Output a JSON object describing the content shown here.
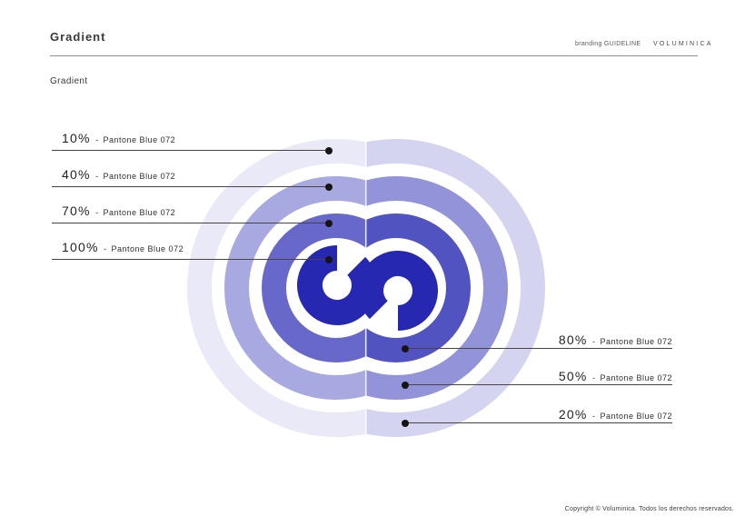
{
  "header": {
    "title": "Gradient",
    "tagline": "branding GUIDELINE",
    "brand": "VOLUMINICA"
  },
  "section": {
    "subtitle": "Gradient"
  },
  "figure": {
    "base_color": "#2628b2",
    "separator": "-",
    "left_callouts": [
      {
        "pct": "10%",
        "name": "Pantone Blue 072",
        "opacity": 0.1
      },
      {
        "pct": "40%",
        "name": "Pantone Blue 072",
        "opacity": 0.4
      },
      {
        "pct": "70%",
        "name": "Pantone Blue 072",
        "opacity": 0.7
      },
      {
        "pct": "100%",
        "name": "Pantone Blue 072",
        "opacity": 1.0
      }
    ],
    "right_callouts": [
      {
        "pct": "80%",
        "name": "Pantone Blue 072",
        "opacity": 0.8
      },
      {
        "pct": "50%",
        "name": "Pantone Blue 072",
        "opacity": 0.5
      },
      {
        "pct": "20%",
        "name": "Pantone Blue 072",
        "opacity": 0.2
      }
    ]
  },
  "footer": {
    "copyright": "Copyright © Voluminica. Todos los derechos reservados."
  }
}
